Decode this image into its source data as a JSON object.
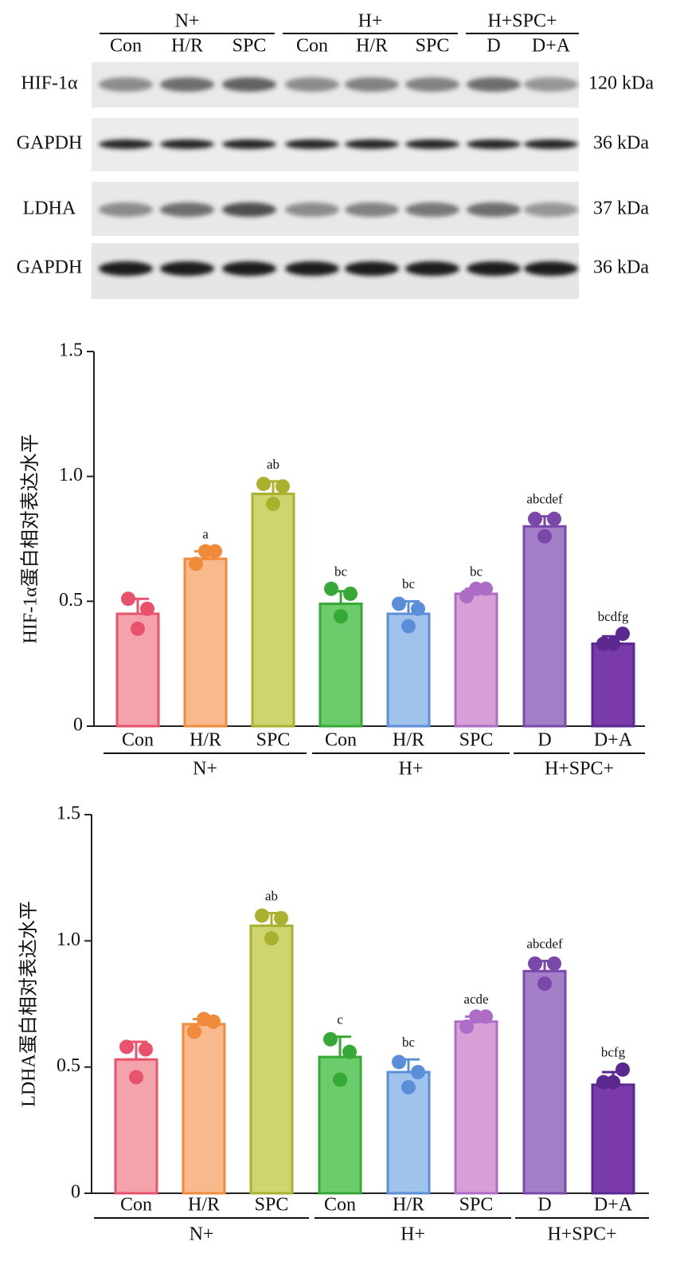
{
  "blot": {
    "groups": [
      {
        "name": "N+",
        "lanes": [
          "Con",
          "H/R",
          "SPC"
        ]
      },
      {
        "name": "H+",
        "lanes": [
          "Con",
          "H/R",
          "SPC"
        ]
      },
      {
        "name": "H+SPC+",
        "lanes": [
          "D",
          "D+A"
        ]
      }
    ],
    "rows": [
      {
        "label": "HIF-1α",
        "size": "120 kDa"
      },
      {
        "label": "GAPDH",
        "size": "36 kDa"
      },
      {
        "label": "LDHA",
        "size": "37 kDa"
      },
      {
        "label": "GAPDH",
        "size": "36 kDa"
      }
    ]
  },
  "chart_data": [
    {
      "type": "bar",
      "ylabel": "HIF-1α蛋白相对表达水平",
      "groups": [
        {
          "name": "N+",
          "categories": [
            "Con",
            "H/R",
            "SPC"
          ]
        },
        {
          "name": "H+",
          "categories": [
            "Con",
            "H/R",
            "SPC"
          ]
        },
        {
          "name": "H+SPC+",
          "categories": [
            "D",
            "D+A"
          ]
        }
      ],
      "values": [
        0.45,
        0.67,
        0.93,
        0.49,
        0.45,
        0.53,
        0.8,
        0.33
      ],
      "errors": [
        0.06,
        0.03,
        0.05,
        0.05,
        0.05,
        0.02,
        0.04,
        0.03
      ],
      "points": [
        [
          0.51,
          0.47,
          0.39
        ],
        [
          0.65,
          0.7,
          0.7
        ],
        [
          0.97,
          0.96,
          0.89
        ],
        [
          0.55,
          0.53,
          0.44
        ],
        [
          0.49,
          0.47,
          0.4
        ],
        [
          0.52,
          0.55,
          0.55
        ],
        [
          0.83,
          0.83,
          0.76
        ],
        [
          0.33,
          0.37,
          0.33
        ]
      ],
      "annotations": [
        null,
        "a",
        "ab",
        "bc",
        "bc",
        "bc",
        "abcdef",
        "bcdfg"
      ],
      "colors": [
        "#f5a3ab",
        "#f8ba8c",
        "#cfd56e",
        "#6ccb6a",
        "#a0c3ec",
        "#d6a0d6",
        "#a27fc6",
        "#7b3aa9"
      ],
      "edge_colors": [
        "#e9526c",
        "#f28a3c",
        "#a9b12e",
        "#36a836",
        "#5a8ed8",
        "#ad6cc6",
        "#7a48aa",
        "#5b2890"
      ],
      "ylim": [
        0,
        1.5
      ],
      "yticks": [
        0,
        0.5,
        {
          "value": 1,
          "label": "1.0"
        },
        1.5
      ]
    },
    {
      "type": "bar",
      "ylabel": "LDHA蛋白相对表达水平",
      "groups": [
        {
          "name": "N+",
          "categories": [
            "Con",
            "H/R",
            "SPC"
          ]
        },
        {
          "name": "H+",
          "categories": [
            "Con",
            "H/R",
            "SPC"
          ]
        },
        {
          "name": "H+SPC+",
          "categories": [
            "D",
            "D+A"
          ]
        }
      ],
      "values": [
        0.53,
        0.67,
        1.06,
        0.54,
        0.48,
        0.68,
        0.88,
        0.43
      ],
      "errors": [
        0.07,
        0.02,
        0.05,
        0.08,
        0.05,
        0.02,
        0.04,
        0.05
      ],
      "points": [
        [
          0.58,
          0.57,
          0.46
        ],
        [
          0.64,
          0.68,
          0.69
        ],
        [
          1.1,
          1.09,
          1.01
        ],
        [
          0.61,
          0.56,
          0.45
        ],
        [
          0.52,
          0.48,
          0.42
        ],
        [
          0.66,
          0.7,
          0.7
        ],
        [
          0.91,
          0.91,
          0.83
        ],
        [
          0.44,
          0.49,
          0.44
        ]
      ],
      "annotations": [
        null,
        null,
        "ab",
        "c",
        "bc",
        "acde",
        "abcdef",
        "bcfg"
      ],
      "colors": [
        "#f5a3ab",
        "#f8ba8c",
        "#cfd56e",
        "#6ccb6a",
        "#a0c3ec",
        "#d6a0d6",
        "#a27fc6",
        "#7b3aa9"
      ],
      "edge_colors": [
        "#e9526c",
        "#f28a3c",
        "#a9b12e",
        "#36a836",
        "#5a8ed8",
        "#ad6cc6",
        "#7a48aa",
        "#5b2890"
      ],
      "ylim": [
        0,
        1.5
      ],
      "yticks": [
        0,
        0.5,
        {
          "value": 1,
          "label": "1.0"
        },
        1.5
      ]
    }
  ]
}
